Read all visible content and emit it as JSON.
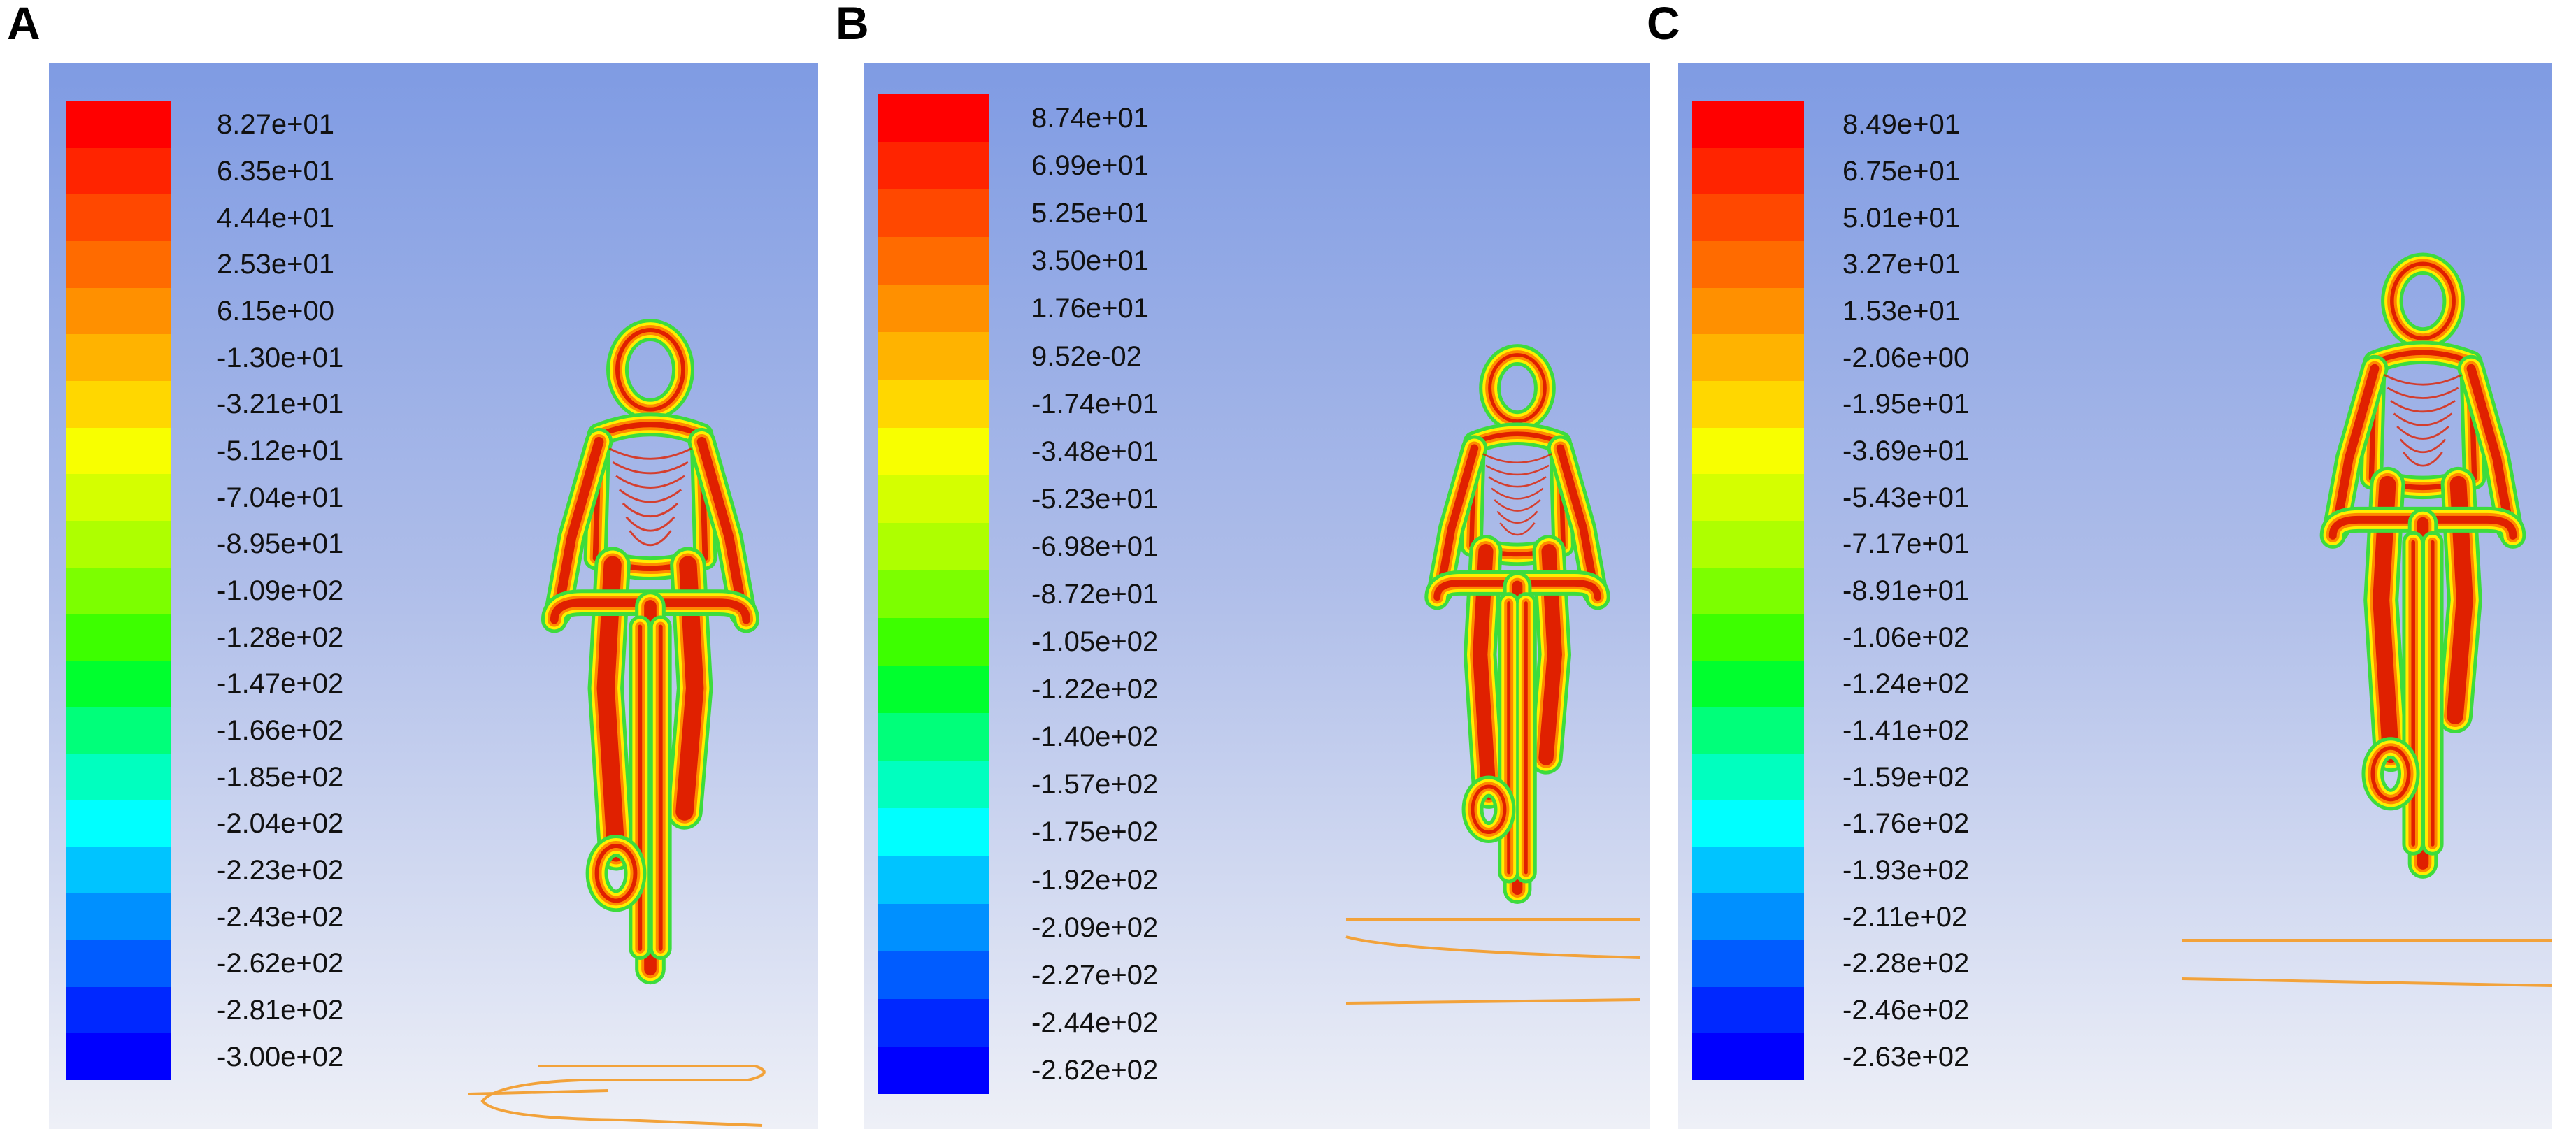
{
  "panels": [
    {
      "letter": "A",
      "labels": [
        "8.27e+01",
        "6.35e+01",
        "4.44e+01",
        "2.53e+01",
        "6.15e+00",
        "-1.30e+01",
        "-3.21e+01",
        "-5.12e+01",
        "-7.04e+01",
        "-8.95e+01",
        "-1.09e+02",
        "-1.28e+02",
        "-1.47e+02",
        "-1.66e+02",
        "-1.85e+02",
        "-2.04e+02",
        "-2.23e+02",
        "-2.43e+02",
        "-2.62e+02",
        "-2.81e+02",
        "-3.00e+02"
      ]
    },
    {
      "letter": "B",
      "labels": [
        "8.74e+01",
        "6.99e+01",
        "5.25e+01",
        "3.50e+01",
        "1.76e+01",
        "9.52e-02",
        "-1.74e+01",
        "-3.48e+01",
        "-5.23e+01",
        "-6.98e+01",
        "-8.72e+01",
        "-1.05e+02",
        "-1.22e+02",
        "-1.40e+02",
        "-1.57e+02",
        "-1.75e+02",
        "-1.92e+02",
        "-2.09e+02",
        "-2.27e+02",
        "-2.44e+02",
        "-2.62e+02"
      ]
    },
    {
      "letter": "C",
      "labels": [
        "8.49e+01",
        "6.75e+01",
        "5.01e+01",
        "3.27e+01",
        "1.53e+01",
        "-2.06e+00",
        "-1.95e+01",
        "-3.69e+01",
        "-5.43e+01",
        "-7.17e+01",
        "-8.91e+01",
        "-1.06e+02",
        "-1.24e+02",
        "-1.41e+02",
        "-1.59e+02",
        "-1.76e+02",
        "-1.93e+02",
        "-2.11e+02",
        "-2.28e+02",
        "-2.46e+02",
        "-2.63e+02"
      ]
    }
  ],
  "colormap": [
    "#ff0000",
    "#ff2400",
    "#ff4800",
    "#ff6b00",
    "#ff9000",
    "#ffb300",
    "#ffd700",
    "#f8ff00",
    "#d4ff00",
    "#aeff00",
    "#7cff00",
    "#3dff00",
    "#00ff2e",
    "#00ff7a",
    "#00ffbf",
    "#00ffff",
    "#00c4ff",
    "#0090ff",
    "#005cff",
    "#0028ff",
    "#0000ff"
  ],
  "colors": {
    "contour_red": "#e02000",
    "contour_orange": "#ff8a00",
    "contour_yellow": "#ffee00",
    "contour_green": "#3ddc3d",
    "ground": "#f2a23a"
  }
}
